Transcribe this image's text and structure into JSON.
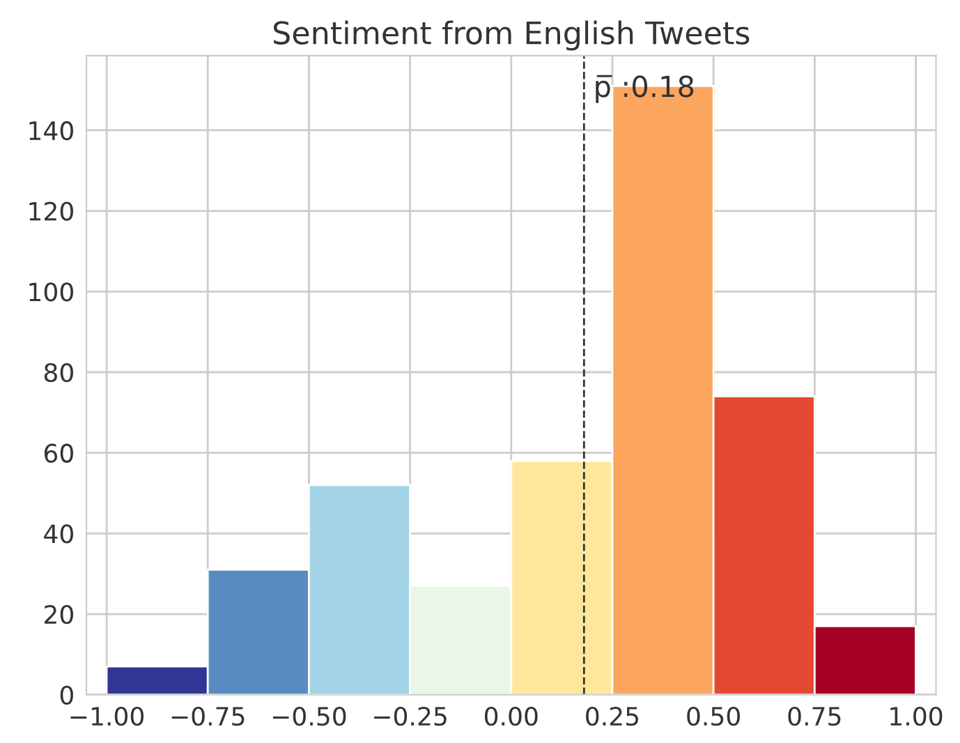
{
  "chart_data": {
    "type": "histogram",
    "title": "Sentiment from English Tweets",
    "bins": [
      -1.0,
      -0.75,
      -0.5,
      -0.25,
      0.0,
      0.25,
      0.5,
      0.75,
      1.0
    ],
    "values": [
      7,
      31,
      52,
      27,
      58,
      151,
      74,
      17
    ],
    "colors": [
      "#313695",
      "#588cc0",
      "#a3d3e6",
      "#e9f6e8",
      "#fee79b",
      "#fca55d",
      "#e34933",
      "#a50026"
    ],
    "xlim": [
      -1.05,
      1.05
    ],
    "xticks": [
      {
        "value": -1.0,
        "label": "−1.00"
      },
      {
        "value": -0.75,
        "label": "−0.75"
      },
      {
        "value": -0.5,
        "label": "−0.50"
      },
      {
        "value": -0.25,
        "label": "−0.25"
      },
      {
        "value": 0.0,
        "label": "0.00"
      },
      {
        "value": 0.25,
        "label": "0.25"
      },
      {
        "value": 0.5,
        "label": "0.50"
      },
      {
        "value": 0.75,
        "label": "0.75"
      },
      {
        "value": 1.0,
        "label": "1.00"
      }
    ],
    "ylim": [
      0,
      158.5
    ],
    "yticks": [
      0,
      20,
      40,
      60,
      80,
      100,
      120,
      140
    ],
    "ref_lines": [
      {
        "axis": "x",
        "value": 0.18,
        "label": "p̅ :0.18",
        "color": "#333333",
        "line_style": "dashed"
      }
    ],
    "grid": true
  }
}
